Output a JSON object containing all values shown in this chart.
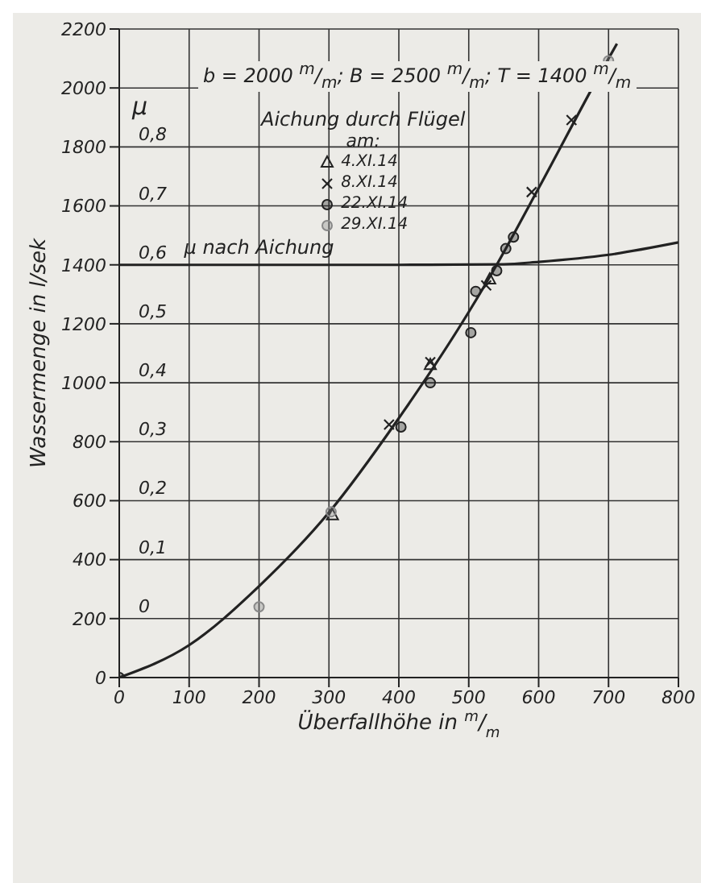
{
  "chart_data": {
    "type": "scatter",
    "xlabel": "Überfallhöhe in $^{m}$/$_{m}$",
    "ylabel": "Wassermenge in l/sek",
    "y2label": "μ",
    "legend_title": "Aichung durch Flügel\nam:",
    "annotations": [
      "b = 2000 $^{m}$/$_{m}$; B = 2500 $^{m}$/$_{m}$; T = 1400 $^{m}$/$_{m}$"
    ],
    "xlim": [
      0,
      800
    ],
    "xticks": [
      0,
      100,
      200,
      300,
      400,
      500,
      600,
      700,
      800
    ],
    "ylim": [
      0,
      2200
    ],
    "yticks": [
      0,
      200,
      400,
      600,
      800,
      1000,
      1200,
      1400,
      1600,
      1800,
      2000,
      2200
    ],
    "y2lim": [
      -0.1,
      1.0
    ],
    "y2ticks": [
      {
        "value": 0,
        "label": "0"
      },
      {
        "value": 0.1,
        "label": "0,1"
      },
      {
        "value": 0.2,
        "label": "0,2"
      },
      {
        "value": 0.3,
        "label": "0,3"
      },
      {
        "value": 0.4,
        "label": "0,4"
      },
      {
        "value": 0.5,
        "label": "0,5"
      },
      {
        "value": 0.6,
        "label": "0,6"
      },
      {
        "value": 0.7,
        "label": "0,7"
      },
      {
        "value": 0.8,
        "label": "0,8"
      }
    ],
    "grid": true,
    "legend": "top",
    "series": [
      {
        "type": "line",
        "color": "#222222",
        "marker": "none",
        "x": [
          0,
          100,
          200,
          300,
          400,
          500,
          540,
          600,
          700,
          712
        ],
        "values": [
          0,
          110,
          310,
          560,
          880,
          1240,
          1400,
          1660,
          2100,
          2150
        ]
      },
      {
        "type": "line",
        "name": "μ nach Aichung",
        "axis": "y2",
        "color": "#222222",
        "marker": "none",
        "x": [
          0,
          200,
          400,
          550,
          600,
          700,
          800
        ],
        "values": [
          0.6,
          0.6,
          0.6,
          0.601,
          0.605,
          0.617,
          0.638
        ]
      },
      {
        "name": "4.XI.14",
        "color": "#222222",
        "marker": "triangle",
        "x": [
          305,
          445,
          530
        ],
        "values": [
          550,
          1060,
          1350
        ]
      },
      {
        "name": "8.XI.14",
        "color": "#222222",
        "marker": "cross",
        "x": [
          386,
          445,
          525,
          590,
          647
        ],
        "values": [
          858,
          1070,
          1330,
          1647,
          1891
        ]
      },
      {
        "name": "22.XI.14",
        "color": "#222222",
        "marker": "circle",
        "x": [
          0,
          403,
          445,
          503,
          510,
          540,
          553,
          564
        ],
        "values": [
          0,
          850,
          1000,
          1170,
          1310,
          1380,
          1455,
          1494
        ]
      },
      {
        "name": "29.XI.14",
        "color": "#888888",
        "marker": "circle",
        "x": [
          200,
          303,
          700
        ],
        "values": [
          240,
          562,
          2092
        ]
      }
    ]
  }
}
